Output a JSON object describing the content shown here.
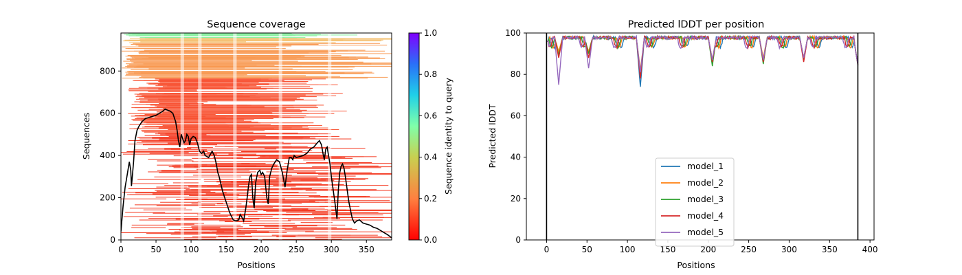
{
  "chart_data": [
    {
      "type": "heatmap",
      "title": "Sequence coverage",
      "xlabel": "Positions",
      "ylabel": "Sequences",
      "xlim": [
        0,
        386
      ],
      "ylim": [
        0,
        980
      ],
      "xticks": [
        0,
        50,
        100,
        150,
        200,
        250,
        300,
        350
      ],
      "yticks": [
        0,
        200,
        400,
        600,
        800
      ],
      "colorbar": {
        "label": "Sequence identity to query",
        "ticks": [
          "0.0",
          "0.2",
          "0.4",
          "0.6",
          "0.8",
          "1.0"
        ],
        "range": [
          0,
          1
        ],
        "colormap": "rainbow_r"
      },
      "coverage_line": {
        "name": "coverage",
        "color": "#000000",
        "x": [
          0,
          3,
          6,
          9,
          12,
          14,
          15,
          16,
          18,
          20,
          23,
          26,
          30,
          35,
          40,
          45,
          50,
          55,
          60,
          63,
          66,
          70,
          74,
          78,
          80,
          82,
          84,
          86,
          88,
          90,
          92,
          94,
          96,
          98,
          100,
          103,
          106,
          109,
          112,
          115,
          118,
          120,
          125,
          130,
          133,
          136,
          138,
          140,
          145,
          150,
          155,
          160,
          164,
          168,
          170,
          172,
          175,
          178,
          180,
          182,
          184,
          186,
          188,
          190,
          192,
          195,
          198,
          200,
          202,
          205,
          208,
          210,
          212,
          215,
          218,
          222,
          226,
          230,
          234,
          237,
          240,
          243,
          245,
          247,
          250,
          255,
          260,
          265,
          270,
          275,
          280,
          283,
          286,
          288,
          290,
          292,
          294,
          296,
          298,
          300,
          302,
          305,
          308,
          310,
          312,
          314,
          316,
          318,
          320,
          322,
          325,
          328,
          330,
          333,
          336,
          340,
          345,
          350,
          355,
          360,
          365,
          370,
          375,
          380,
          384,
          386
        ],
        "y": [
          40,
          160,
          250,
          310,
          370,
          330,
          255,
          290,
          370,
          470,
          520,
          540,
          560,
          575,
          580,
          585,
          590,
          600,
          610,
          620,
          615,
          610,
          600,
          560,
          520,
          470,
          440,
          500,
          480,
          460,
          470,
          500,
          490,
          450,
          480,
          490,
          485,
          460,
          420,
          410,
          420,
          400,
          390,
          420,
          400,
          360,
          320,
          300,
          230,
          180,
          130,
          95,
          90,
          95,
          120,
          110,
          90,
          150,
          200,
          260,
          300,
          310,
          200,
          150,
          270,
          320,
          330,
          310,
          320,
          300,
          200,
          170,
          300,
          340,
          360,
          380,
          370,
          320,
          250,
          330,
          390,
          390,
          380,
          400,
          390,
          395,
          400,
          410,
          430,
          440,
          460,
          470,
          450,
          410,
          380,
          430,
          440,
          400,
          360,
          300,
          250,
          180,
          100,
          240,
          320,
          350,
          360,
          340,
          300,
          250,
          180,
          130,
          100,
          80,
          90,
          95,
          80,
          75,
          70,
          60,
          55,
          45,
          35,
          25,
          15,
          10
        ]
      }
    },
    {
      "type": "line",
      "title": "Predicted lDDT per position",
      "xlabel": "Positions",
      "ylabel": "Predicted lDDT",
      "xlim": [
        -25,
        405
      ],
      "ylim": [
        0,
        100
      ],
      "xticks": [
        0,
        50,
        100,
        150,
        200,
        250,
        300,
        350,
        400
      ],
      "yticks": [
        0,
        20,
        40,
        60,
        80,
        100
      ],
      "vlines": [
        0,
        385
      ],
      "legend_position": "lower-center",
      "series": [
        {
          "name": "model_1",
          "color": "#1f77b4",
          "dips": [
            [
              15,
              90
            ],
            [
              52,
              90
            ],
            [
              116,
              74
            ],
            [
              205,
              86
            ],
            [
              268,
              87
            ],
            [
              318,
              88
            ]
          ]
        },
        {
          "name": "model_2",
          "color": "#ff7f0e",
          "dips": [
            [
              15,
              91
            ],
            [
              52,
              91
            ],
            [
              116,
              82
            ],
            [
              205,
              87
            ],
            [
              268,
              88
            ],
            [
              318,
              88
            ]
          ]
        },
        {
          "name": "model_3",
          "color": "#2ca02c",
          "dips": [
            [
              15,
              89
            ],
            [
              52,
              90
            ],
            [
              116,
              80
            ],
            [
              205,
              84
            ],
            [
              268,
              85
            ],
            [
              318,
              87
            ]
          ]
        },
        {
          "name": "model_4",
          "color": "#d62728",
          "dips": [
            [
              15,
              88
            ],
            [
              52,
              88
            ],
            [
              116,
              78
            ],
            [
              205,
              86
            ],
            [
              268,
              86
            ],
            [
              318,
              86
            ]
          ]
        },
        {
          "name": "model_5",
          "color": "#9467bd",
          "dips": [
            [
              15,
              75
            ],
            [
              52,
              83
            ],
            [
              116,
              81
            ],
            [
              205,
              87
            ],
            [
              268,
              87
            ],
            [
              318,
              88
            ]
          ]
        }
      ]
    }
  ]
}
